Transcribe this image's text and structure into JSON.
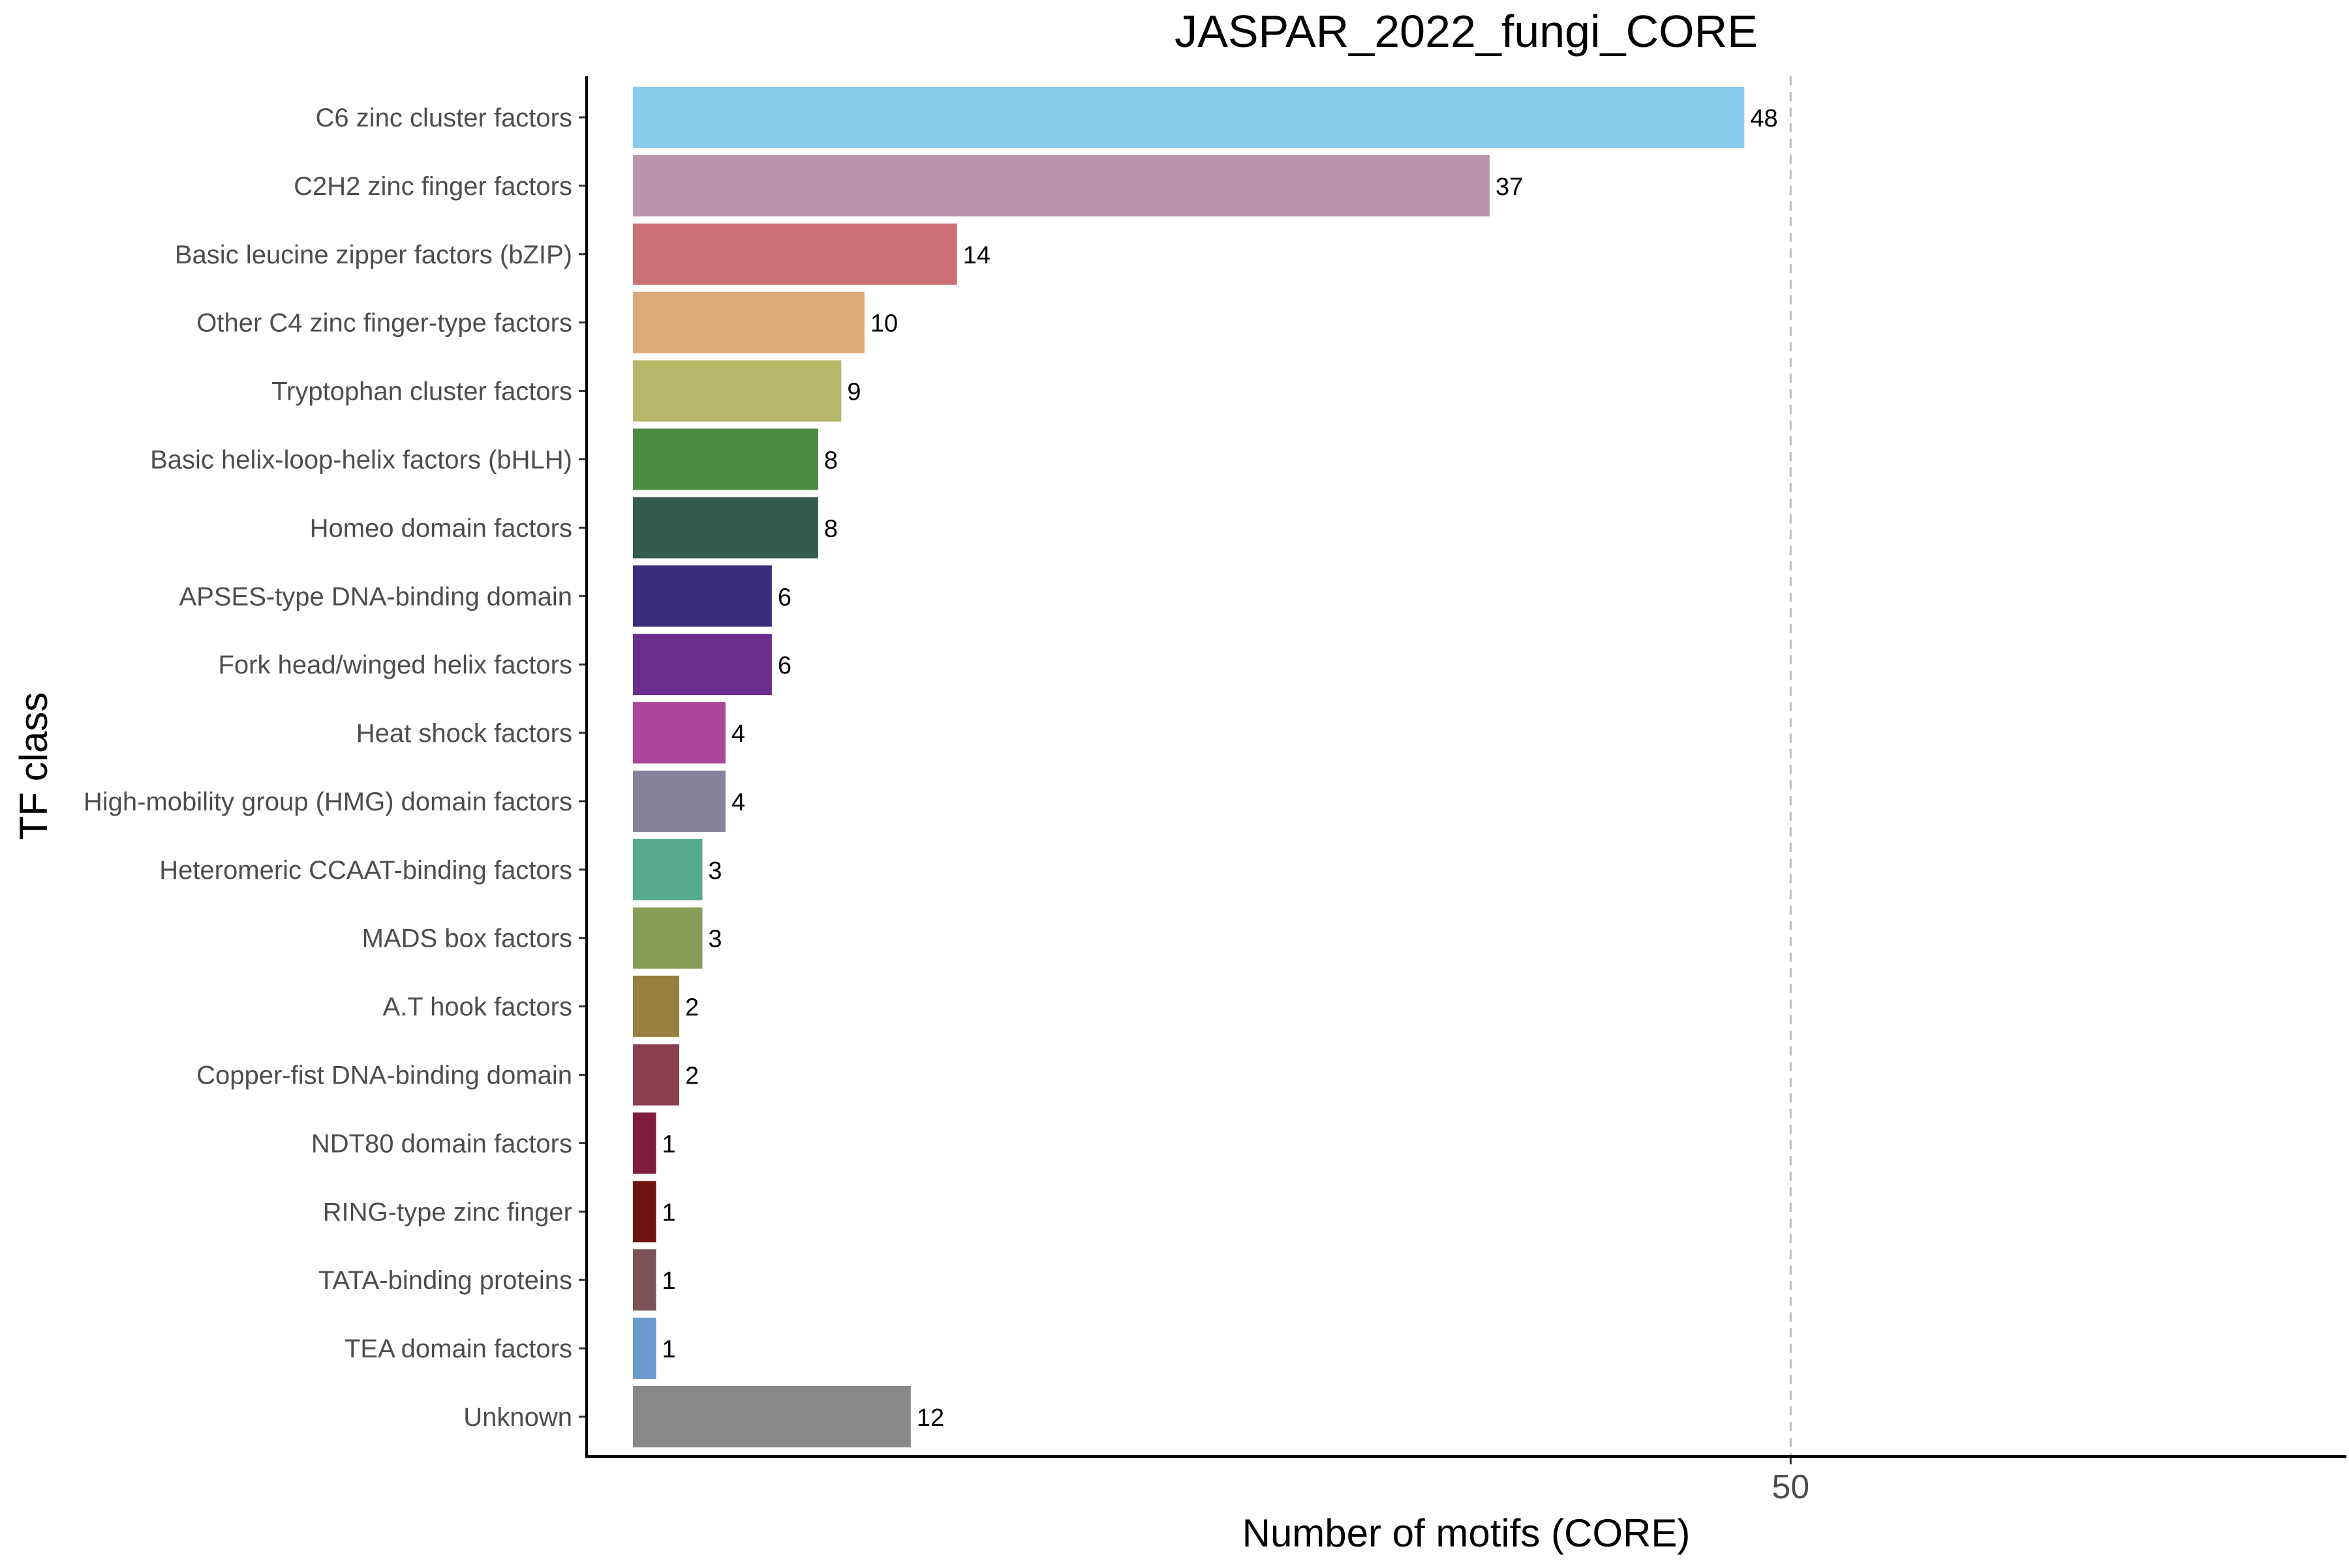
{
  "chart_data": {
    "type": "bar",
    "orientation": "horizontal",
    "title": "JASPAR_2022_fungi_CORE",
    "xlabel": "Number of motifs (CORE)",
    "ylabel": "TF class",
    "xlim": [
      -2,
      74
    ],
    "xticks": [
      50
    ],
    "reference_line": 50,
    "grid": false,
    "legend": "none",
    "categories": [
      "C6 zinc cluster factors",
      "C2H2 zinc finger factors",
      "Basic leucine zipper factors (bZIP)",
      "Other C4 zinc finger-type factors",
      "Tryptophan cluster factors",
      "Basic helix-loop-helix factors (bHLH)",
      "Homeo domain factors",
      "APSES-type DNA-binding domain",
      "Fork head/winged helix factors",
      "Heat shock factors",
      "High-mobility group (HMG) domain factors",
      "Heteromeric CCAAT-binding factors",
      "MADS box factors",
      "A.T hook factors",
      "Copper-fist DNA-binding domain",
      "NDT80 domain factors",
      "RING-type zinc finger",
      "TATA-binding proteins",
      "TEA domain factors",
      "Unknown"
    ],
    "values": [
      48,
      37,
      14,
      10,
      9,
      8,
      8,
      6,
      6,
      4,
      4,
      3,
      3,
      2,
      2,
      1,
      1,
      1,
      1,
      12
    ],
    "colors": [
      "#88CCEE",
      "#BB95AC",
      "#CD7075",
      "#DBAA78",
      "#B5B868",
      "#4A8A41",
      "#345B4F",
      "#3A2E7C",
      "#6B2D8C",
      "#AA4599",
      "#848299",
      "#56AA8F",
      "#889D57",
      "#977F3D",
      "#8A3F4E",
      "#7F1C40",
      "#6E1513",
      "#7D5158",
      "#6B9ACC",
      "#888888"
    ]
  }
}
